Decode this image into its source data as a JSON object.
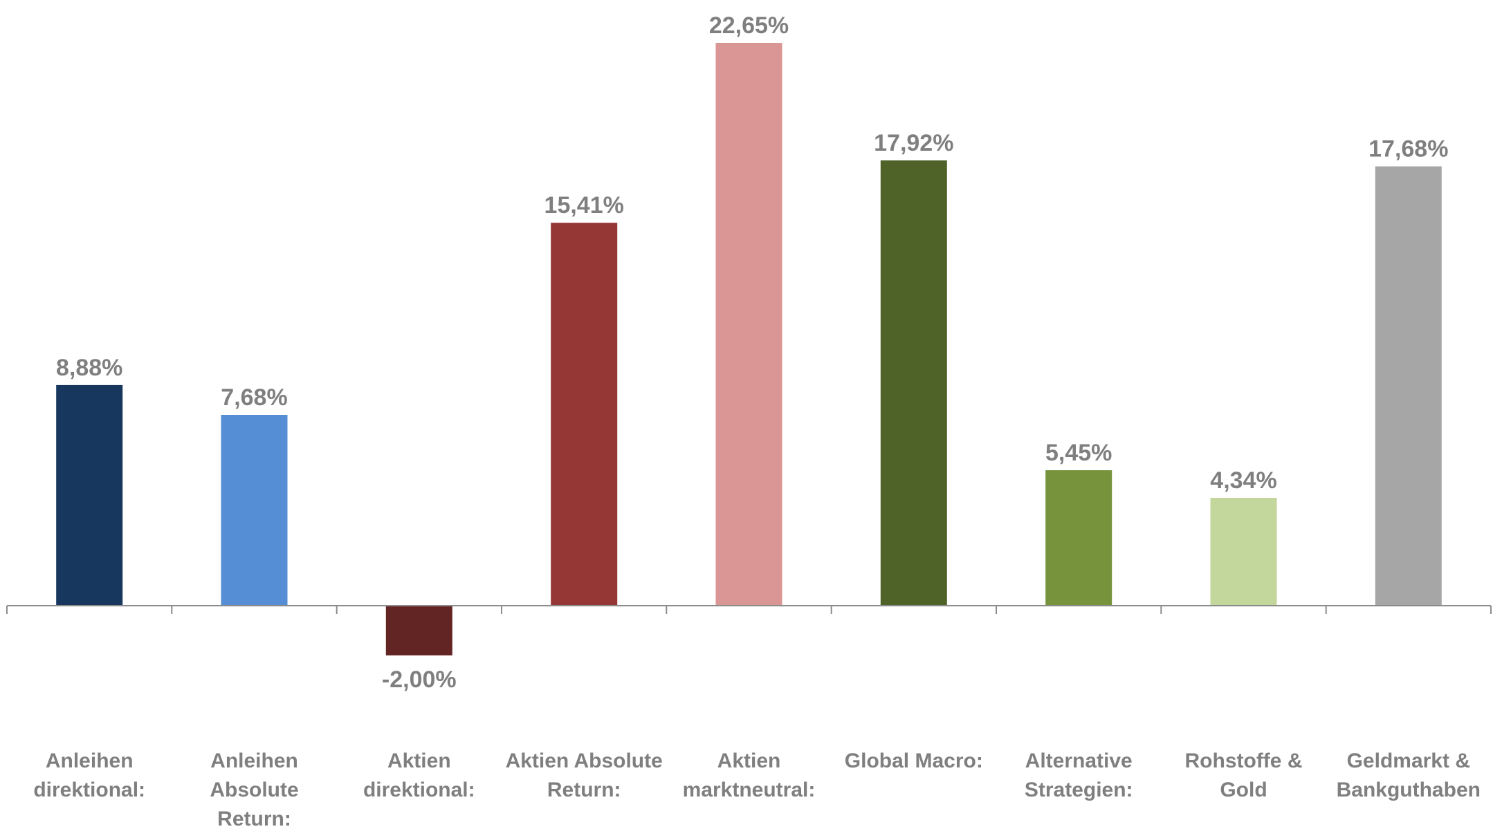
{
  "chart_data": {
    "type": "bar",
    "title": "",
    "xlabel": "",
    "ylabel": "",
    "ylim": [
      -2.0,
      22.65
    ],
    "grid": false,
    "legend": "none",
    "categories": [
      [
        "Anleihen",
        "direktional:"
      ],
      [
        "Anleihen",
        "Absolute",
        "Return:"
      ],
      [
        "Aktien",
        "direktional:"
      ],
      [
        "Aktien Absolute",
        "Return:"
      ],
      [
        "Aktien",
        "marktneutral:"
      ],
      [
        "Global Macro:"
      ],
      [
        "Alternative",
        "Strategien:"
      ],
      [
        "Rohstoffe &",
        "Gold"
      ],
      [
        "Geldmarkt &",
        "Bankguthaben"
      ]
    ],
    "values": [
      8.88,
      7.68,
      -2.0,
      15.41,
      22.65,
      17.92,
      5.45,
      4.34,
      17.68
    ],
    "value_labels": [
      "8,88%",
      "7,68%",
      "-2,00%",
      "15,41%",
      "22,65%",
      "17,92%",
      "5,45%",
      "4,34%",
      "17,68%"
    ],
    "colors": [
      "#17375e",
      "#558ed5",
      "#632523",
      "#953735",
      "#d99694",
      "#4f6228",
      "#77933c",
      "#c3d69b",
      "#a6a6a6"
    ]
  }
}
